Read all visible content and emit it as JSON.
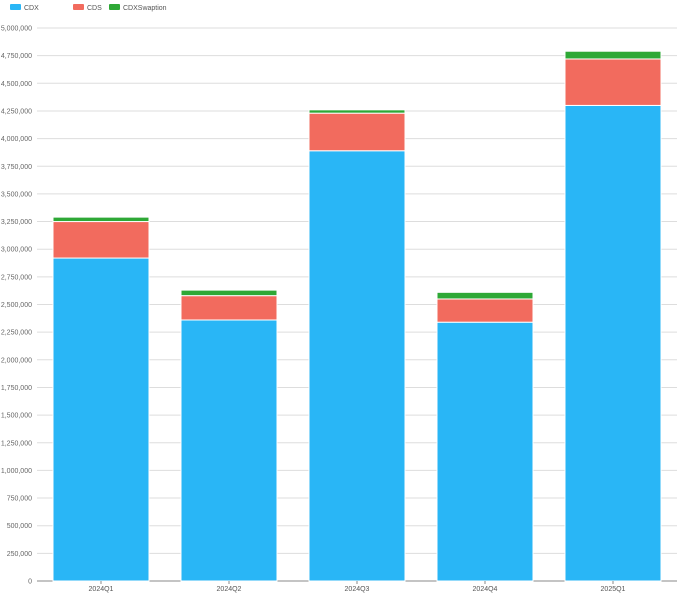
{
  "chart_data": {
    "type": "bar",
    "stacked": true,
    "categories": [
      "2024Q1",
      "2024Q2",
      "2024Q3",
      "2024Q4",
      "2025Q1"
    ],
    "series": [
      {
        "name": "CDX",
        "color": "#29b6f6",
        "values": [
          2920000,
          2360000,
          3890000,
          2340000,
          4300000
        ]
      },
      {
        "name": "CDS",
        "color": "#f26b5e",
        "values": [
          330000,
          220000,
          340000,
          210000,
          420000
        ]
      },
      {
        "name": "CDXSwaption",
        "color": "#2ea836",
        "values": [
          40000,
          50000,
          30000,
          60000,
          70000
        ]
      }
    ],
    "yticks": [
      "0",
      "250,000",
      "500,000",
      "750,000",
      "1,000,000",
      "1,250,000",
      "1,500,000",
      "1,750,000",
      "2,000,000",
      "2,250,000",
      "2,500,000",
      "2,750,000",
      "3,000,000",
      "3,250,000",
      "3,500,000",
      "3,750,000",
      "4,000,000",
      "4,250,000",
      "4,500,000",
      "4,750,000",
      "5,000,000"
    ],
    "ylim": [
      0,
      5000000
    ],
    "grid": true,
    "legend_position": "top-left"
  }
}
